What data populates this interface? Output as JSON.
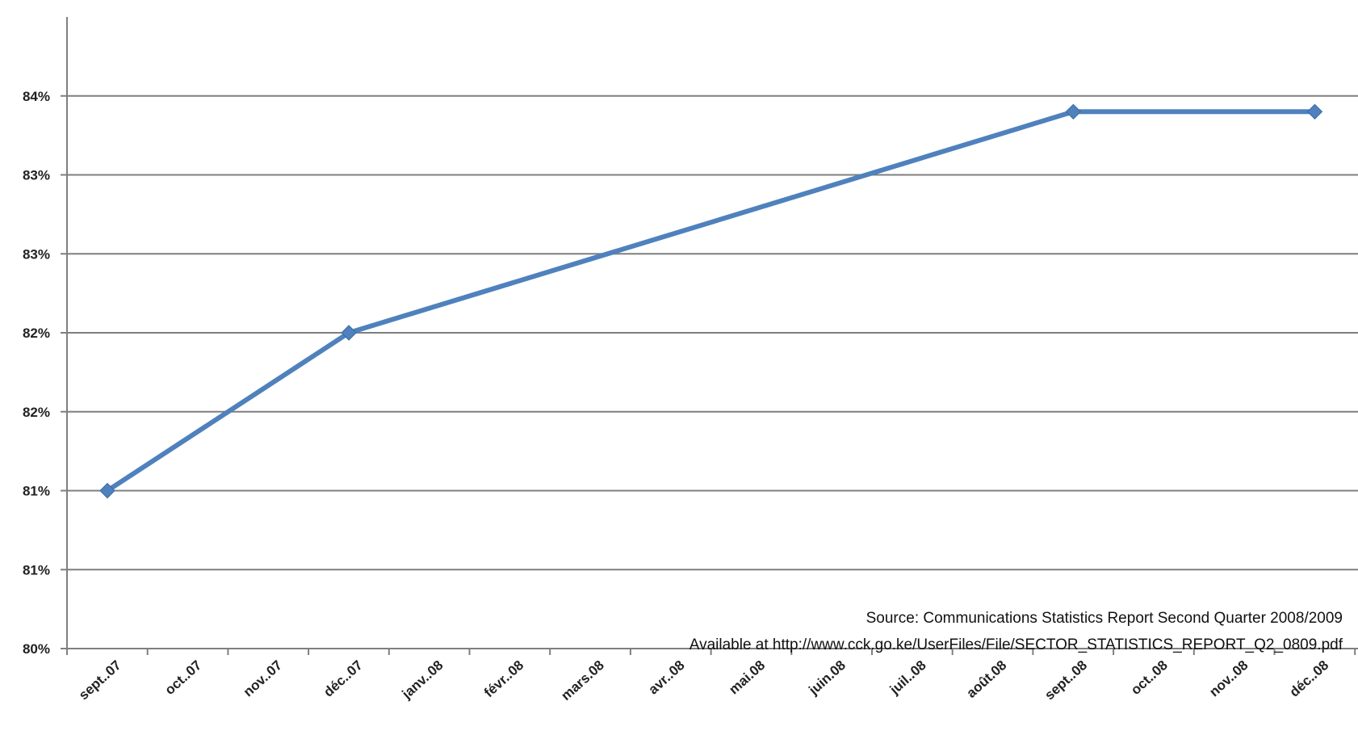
{
  "chart_data": {
    "type": "line",
    "categories": [
      "sept..07",
      "oct..07",
      "nov..07",
      "déc..07",
      "janv..08",
      "févr..08",
      "mars.08",
      "avr..08",
      "mai.08",
      "juin.08",
      "juil..08",
      "août.08",
      "sept..08",
      "oct..08",
      "nov..08",
      "déc..08"
    ],
    "series": [
      {
        "x": [
          "sept..07",
          "déc..07",
          "sept..08",
          "déc..08"
        ],
        "values": [
          81.0,
          82.0,
          83.4,
          83.4
        ]
      }
    ],
    "yaxis": {
      "min": 80.0,
      "max": 84.0,
      "step": 0.5,
      "tick_labels": [
        "80%",
        "81%",
        "81%",
        "82%",
        "82%",
        "83%",
        "83%",
        "84%"
      ]
    },
    "grid": true,
    "line_color": "#4f81bd",
    "annotation": {
      "line1": "Source: Communications Statistics Report Second Quarter 2008/2009",
      "line2": "Available at http://www.cck.go.ke/UserFiles/File/SECTOR_STATISTICS_REPORT_Q2_0809.pdf"
    }
  }
}
